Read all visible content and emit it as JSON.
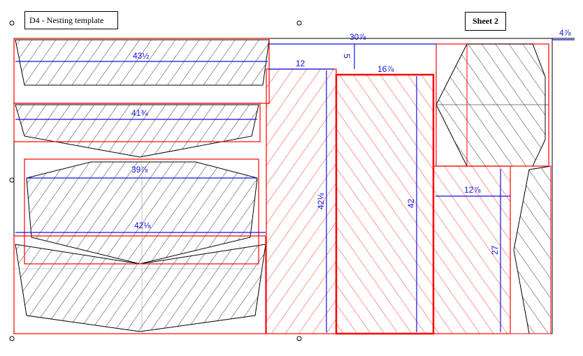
{
  "title": "D4 - Nesting template",
  "sheet": "Sheet 2",
  "colors": {
    "part_outline": "#ff0000",
    "dimension": "#1010e0",
    "geometry": "#000000"
  },
  "dimensions": {
    "d_top_width": "30⅞",
    "d_margin_right": "4⅞",
    "d_part1": "43½",
    "d_part2": "41¾",
    "d_part3": "39⅞",
    "d_part4": "42⅛",
    "d_col1_width": "12",
    "d_gap": "5",
    "d_col2_width": "16⅞",
    "d_col1_height": "42⅛",
    "d_col2_height": "42",
    "d_block_width": "12⅞",
    "d_block_height": "27"
  }
}
